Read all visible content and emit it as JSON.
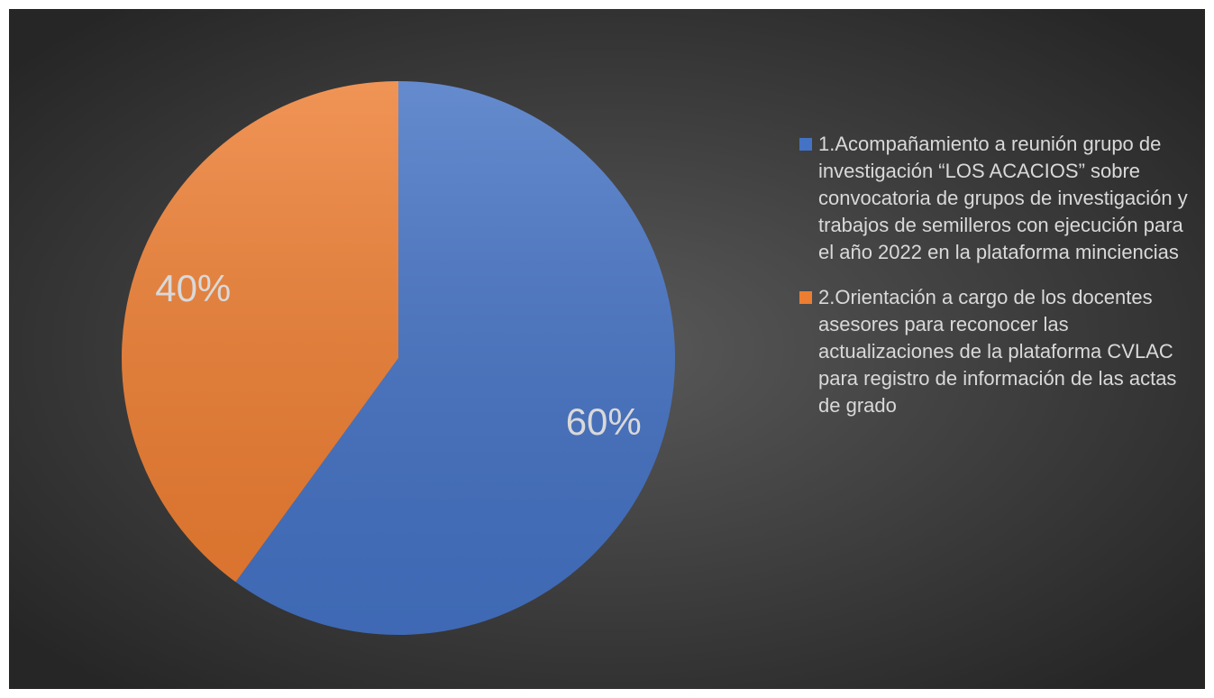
{
  "chart_data": {
    "type": "pie",
    "categories": [
      "1.Acompañamiento a reunión grupo de investigación “LOS ACACIOS” sobre convocatoria de grupos de investigación y trabajos de semilleros con ejecución para el año 2022 en la plataforma minciencias",
      "2.Orientación a cargo de los docentes asesores para reconocer las actualizaciones de la plataforma CVLAC para registro de información de las actas de grado"
    ],
    "values": [
      60,
      40
    ],
    "value_labels": [
      "60%",
      "40%"
    ],
    "colors": [
      "#4472c4",
      "#ed7d31"
    ],
    "legend": "right"
  }
}
